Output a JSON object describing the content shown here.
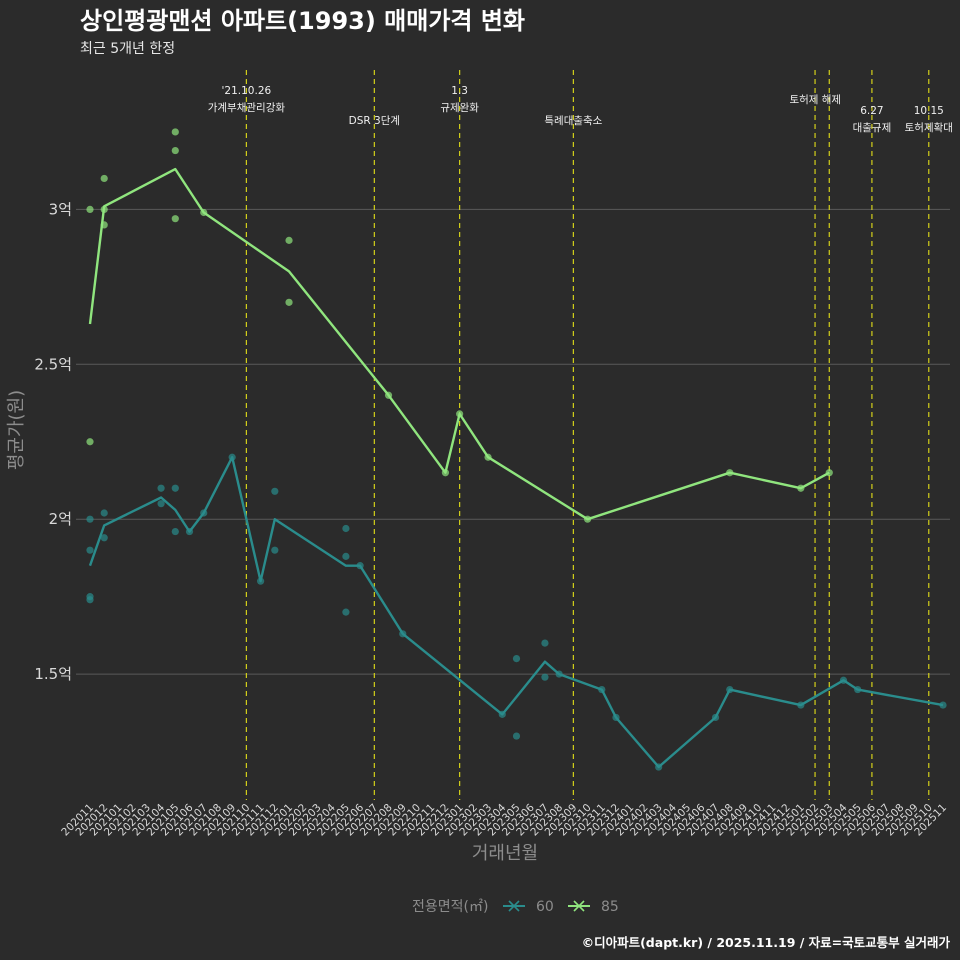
{
  "chart_data": {
    "type": "line",
    "title": "상인평광맨션 아파트(1993) 매매가격 변화",
    "subtitle": "최근 5개년 한정",
    "xlabel": "거래년월",
    "ylabel": "평균가(원)",
    "caption": "©디아파트(dapt.kr) / 2025.11.19 / 자료=국토교통부 실거래가",
    "categories": [
      "202011",
      "202012",
      "202101",
      "202102",
      "202103",
      "202104",
      "202105",
      "202106",
      "202107",
      "202108",
      "202109",
      "202110",
      "202111",
      "202112",
      "202201",
      "202202",
      "202203",
      "202204",
      "202205",
      "202206",
      "202207",
      "202208",
      "202209",
      "202210",
      "202211",
      "202212",
      "202301",
      "202302",
      "202303",
      "202304",
      "202305",
      "202306",
      "202307",
      "202308",
      "202309",
      "202310",
      "202311",
      "202312",
      "202401",
      "202402",
      "202403",
      "202404",
      "202405",
      "202406",
      "202407",
      "202408",
      "202409",
      "202410",
      "202411",
      "202412",
      "202501",
      "202502",
      "202503",
      "202504",
      "202505",
      "202506",
      "202507",
      "202508",
      "202509",
      "202510",
      "202511"
    ],
    "y_ticks": [
      {
        "value": 1.5,
        "label": "1.5억"
      },
      {
        "value": 2.0,
        "label": "2억"
      },
      {
        "value": 2.5,
        "label": "2.5억"
      },
      {
        "value": 3.0,
        "label": "3억"
      }
    ],
    "ylim": [
      1.1,
      3.45
    ],
    "unit": "억원",
    "legend_title": "전용면적(㎡)",
    "series": [
      {
        "name": "60",
        "color": "#2a8c8c",
        "line": [
          [
            "202011",
            1.85
          ],
          [
            "202012",
            1.98
          ],
          [
            "202104",
            2.07
          ],
          [
            "202105",
            2.03
          ],
          [
            "202106",
            1.96
          ],
          [
            "202107",
            2.02
          ],
          [
            "202109",
            2.2
          ],
          [
            "202111",
            1.8
          ],
          [
            "202112",
            2.0
          ],
          [
            "202205",
            1.85
          ],
          [
            "202206",
            1.85
          ],
          [
            "202209",
            1.63
          ],
          [
            "202304",
            1.37
          ],
          [
            "202307",
            1.54
          ],
          [
            "202308",
            1.5
          ],
          [
            "202311",
            1.45
          ],
          [
            "202312",
            1.36
          ],
          [
            "202403",
            1.2
          ],
          [
            "202407",
            1.36
          ],
          [
            "202408",
            1.45
          ],
          [
            "202501",
            1.4
          ],
          [
            "202504",
            1.48
          ],
          [
            "202505",
            1.45
          ],
          [
            "202511",
            1.4
          ]
        ],
        "points": [
          [
            "202011",
            1.9
          ],
          [
            "202011",
            2.0
          ],
          [
            "202011",
            1.75
          ],
          [
            "202011",
            1.74
          ],
          [
            "202012",
            2.02
          ],
          [
            "202012",
            1.94
          ],
          [
            "202104",
            2.1
          ],
          [
            "202104",
            2.05
          ],
          [
            "202105",
            2.1
          ],
          [
            "202105",
            1.96
          ],
          [
            "202106",
            1.96
          ],
          [
            "202107",
            2.02
          ],
          [
            "202109",
            2.2
          ],
          [
            "202111",
            1.8
          ],
          [
            "202112",
            2.09
          ],
          [
            "202112",
            1.9
          ],
          [
            "202205",
            1.97
          ],
          [
            "202205",
            1.88
          ],
          [
            "202205",
            1.7
          ],
          [
            "202206",
            1.85
          ],
          [
            "202209",
            1.63
          ],
          [
            "202304",
            1.37
          ],
          [
            "202305",
            1.55
          ],
          [
            "202305",
            1.3
          ],
          [
            "202307",
            1.6
          ],
          [
            "202307",
            1.49
          ],
          [
            "202308",
            1.5
          ],
          [
            "202311",
            1.45
          ],
          [
            "202312",
            1.36
          ],
          [
            "202403",
            1.2
          ],
          [
            "202407",
            1.36
          ],
          [
            "202408",
            1.45
          ],
          [
            "202501",
            1.4
          ],
          [
            "202504",
            1.48
          ],
          [
            "202505",
            1.45
          ],
          [
            "202511",
            1.4
          ]
        ]
      },
      {
        "name": "85",
        "color": "#90e57e",
        "line": [
          [
            "202011",
            2.63
          ],
          [
            "202012",
            3.01
          ],
          [
            "202105",
            3.13
          ],
          [
            "202107",
            2.99
          ],
          [
            "202201",
            2.8
          ],
          [
            "202208",
            2.4
          ],
          [
            "202212",
            2.15
          ],
          [
            "202301",
            2.34
          ],
          [
            "202303",
            2.2
          ],
          [
            "202310",
            2.0
          ],
          [
            "202408",
            2.15
          ],
          [
            "202501",
            2.1
          ],
          [
            "202503",
            2.15
          ]
        ],
        "points": [
          [
            "202011",
            3.0
          ],
          [
            "202011",
            2.25
          ],
          [
            "202012",
            3.1
          ],
          [
            "202012",
            2.95
          ],
          [
            "202012",
            3.0
          ],
          [
            "202105",
            3.25
          ],
          [
            "202105",
            3.19
          ],
          [
            "202105",
            2.97
          ],
          [
            "202107",
            2.99
          ],
          [
            "202201",
            2.9
          ],
          [
            "202201",
            2.7
          ],
          [
            "202208",
            2.4
          ],
          [
            "202212",
            2.15
          ],
          [
            "202301",
            2.34
          ],
          [
            "202303",
            2.2
          ],
          [
            "202310",
            2.0
          ],
          [
            "202408",
            2.15
          ],
          [
            "202501",
            2.1
          ],
          [
            "202503",
            2.15
          ]
        ]
      }
    ],
    "annotations": [
      {
        "at": "202110",
        "lines": [
          "'21.10.26",
          "가계부채관리강화"
        ],
        "row": 0
      },
      {
        "at": "202207",
        "lines": [
          "DSR 3단계"
        ],
        "row": 1
      },
      {
        "at": "202301",
        "lines": [
          "1.3",
          "규제완화"
        ],
        "row": 0
      },
      {
        "at": "202309",
        "lines": [
          "특례대출축소"
        ],
        "row": 1
      },
      {
        "at": "202502",
        "lines": [],
        "row": 0
      },
      {
        "at": "202503",
        "lines": [
          "토허제 해제"
        ],
        "row": 0,
        "dx": -14
      },
      {
        "at": "202506",
        "lines": [
          "6.27",
          "대출규제"
        ],
        "row": 2
      },
      {
        "at": "202510",
        "lines": [
          "10.15",
          "토허제확대"
        ],
        "row": 2
      }
    ]
  }
}
